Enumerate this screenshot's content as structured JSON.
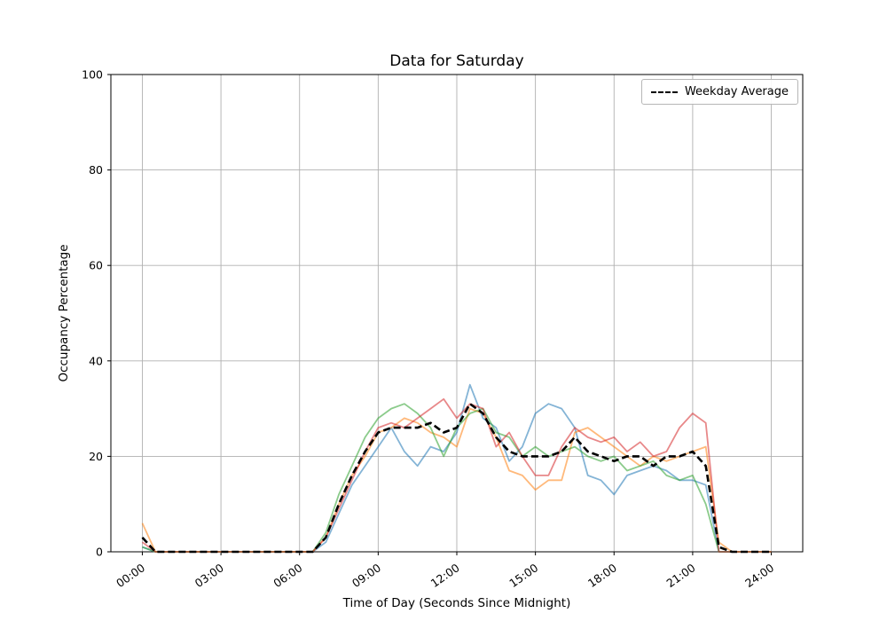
{
  "chart_data": {
    "type": "line",
    "title": "Data for Saturday",
    "xlabel": "Time of Day (Seconds Since Midnight)",
    "ylabel": "Occupancy Percentage",
    "grid": true,
    "ylim": [
      0,
      100
    ],
    "xlim_hours": [
      -1.2,
      25.2
    ],
    "yticks": [
      0,
      20,
      40,
      60,
      80,
      100
    ],
    "xticks_hours": [
      0,
      3,
      6,
      9,
      12,
      15,
      18,
      21,
      24
    ],
    "xtick_labels": [
      "00:00",
      "03:00",
      "06:00",
      "09:00",
      "12:00",
      "15:00",
      "18:00",
      "21:00",
      "24:00"
    ],
    "legend": {
      "label": "Weekday Average",
      "position": "upper right"
    },
    "x_hours": [
      0,
      0.5,
      1,
      1.5,
      2,
      2.5,
      3,
      3.5,
      4,
      4.5,
      5,
      5.5,
      6,
      6.5,
      7,
      7.5,
      8,
      8.5,
      9,
      9.5,
      10,
      10.5,
      11,
      11.5,
      12,
      12.5,
      13,
      13.5,
      14,
      14.5,
      15,
      15.5,
      16,
      16.5,
      17,
      17.5,
      18,
      18.5,
      19,
      19.5,
      20,
      20.5,
      21,
      21.5,
      22,
      22.5,
      23,
      23.5,
      24
    ],
    "series": [
      {
        "name": "line-1",
        "color": "#1f77b4",
        "opacity": 0.55,
        "width": 1.8,
        "dashed": false,
        "values": [
          1,
          0,
          0,
          0,
          0,
          0,
          0,
          0,
          0,
          0,
          0,
          0,
          0,
          0,
          2,
          8,
          14,
          18,
          22,
          26,
          21,
          18,
          22,
          21,
          25,
          35,
          28,
          26,
          19,
          22,
          29,
          31,
          30,
          26,
          16,
          15,
          12,
          16,
          17,
          18,
          17,
          15,
          15,
          14,
          0,
          0,
          0,
          0,
          0
        ]
      },
      {
        "name": "line-2",
        "color": "#ff7f0e",
        "opacity": 0.55,
        "width": 1.8,
        "dashed": false,
        "values": [
          6,
          0,
          0,
          0,
          0,
          0,
          0,
          0,
          0,
          0,
          0,
          0,
          0,
          0,
          3,
          10,
          16,
          20,
          25,
          26,
          28,
          27,
          25,
          24,
          22,
          30,
          29,
          24,
          17,
          16,
          13,
          15,
          15,
          25,
          26,
          24,
          22,
          20,
          18,
          20,
          19,
          20,
          21,
          22,
          2,
          0,
          0,
          0,
          0
        ]
      },
      {
        "name": "line-3",
        "color": "#2ca02c",
        "opacity": 0.55,
        "width": 1.8,
        "dashed": false,
        "values": [
          1,
          0,
          0,
          0,
          0,
          0,
          0,
          0,
          0,
          0,
          0,
          0,
          0,
          0,
          4,
          12,
          18,
          24,
          28,
          30,
          31,
          29,
          26,
          20,
          26,
          29,
          30,
          25,
          24,
          20,
          22,
          20,
          21,
          22,
          20,
          19,
          20,
          17,
          18,
          19,
          16,
          15,
          16,
          10,
          0,
          0,
          0,
          0,
          0
        ]
      },
      {
        "name": "line-4",
        "color": "#d62728",
        "opacity": 0.55,
        "width": 1.8,
        "dashed": false,
        "values": [
          2,
          0,
          0,
          0,
          0,
          0,
          0,
          0,
          0,
          0,
          0,
          0,
          0,
          0,
          3,
          9,
          15,
          21,
          26,
          27,
          26,
          28,
          30,
          32,
          28,
          31,
          30,
          22,
          25,
          20,
          16,
          16,
          22,
          26,
          24,
          23,
          24,
          21,
          23,
          20,
          21,
          26,
          29,
          27,
          0,
          0,
          0,
          0,
          0
        ]
      },
      {
        "name": "Weekday Average",
        "color": "#000000",
        "opacity": 1,
        "width": 2.6,
        "dashed": true,
        "values": [
          3,
          0,
          0,
          0,
          0,
          0,
          0,
          0,
          0,
          0,
          0,
          0,
          0,
          0,
          3,
          10,
          16,
          21,
          25,
          26,
          26,
          26,
          27,
          25,
          26,
          31,
          29,
          24,
          21,
          20,
          20,
          20,
          21,
          24,
          21,
          20,
          19,
          20,
          20,
          18,
          20,
          20,
          21,
          18,
          1,
          0,
          0,
          0,
          0
        ]
      }
    ]
  }
}
